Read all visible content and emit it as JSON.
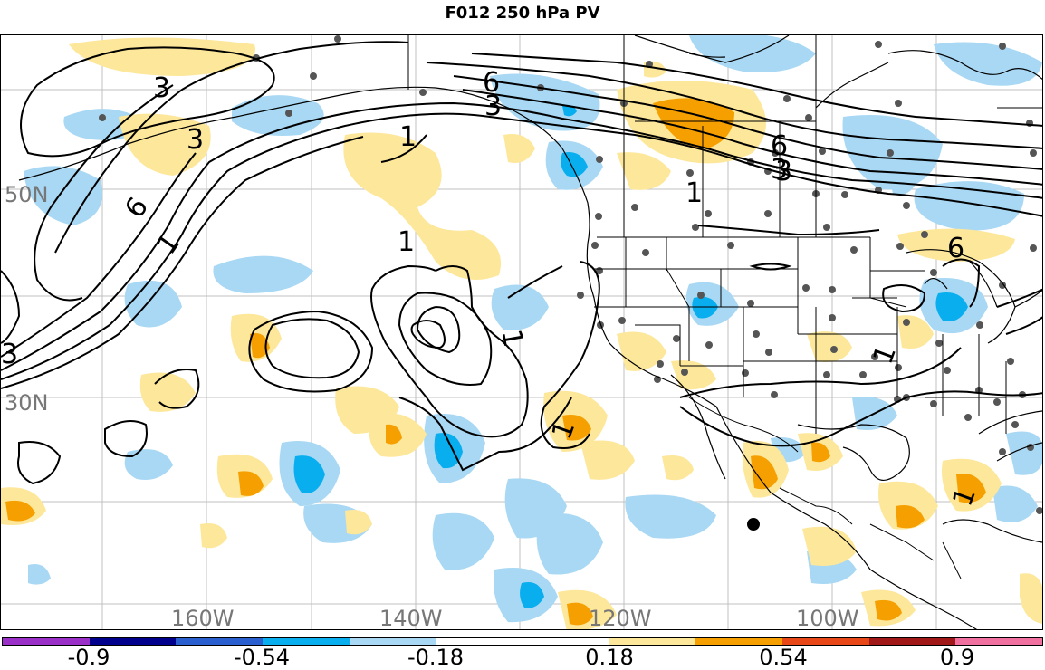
{
  "title": "F012 250 hPa PV",
  "lat_labels": [
    "50N",
    "30N"
  ],
  "lon_labels": [
    "160W",
    "140W",
    "120W",
    "100W"
  ],
  "contour_labels": [
    "3",
    "1",
    "6",
    "3",
    "1",
    "6",
    "3",
    "3",
    "1",
    "3",
    "6",
    "1",
    "6",
    "3",
    "1",
    "1",
    "1",
    "1"
  ],
  "colorbar": {
    "colors": [
      "#9a30c8",
      "#00008c",
      "#2a5fd0",
      "#08aeee",
      "#a8d8f4",
      "#ffffff",
      "#ffffff",
      "#fde79a",
      "#f5a000",
      "#e84818",
      "#a01818",
      "#f070a0"
    ],
    "labels": [
      "-0.9",
      "-0.54",
      "-0.18",
      "0.18",
      "0.54",
      "0.9"
    ]
  },
  "fill_colors": {
    "neg_light": "#a8d8f4",
    "neg_mid": "#08aeee",
    "pos_light": "#fde79a",
    "pos_mid": "#f5a000"
  }
}
